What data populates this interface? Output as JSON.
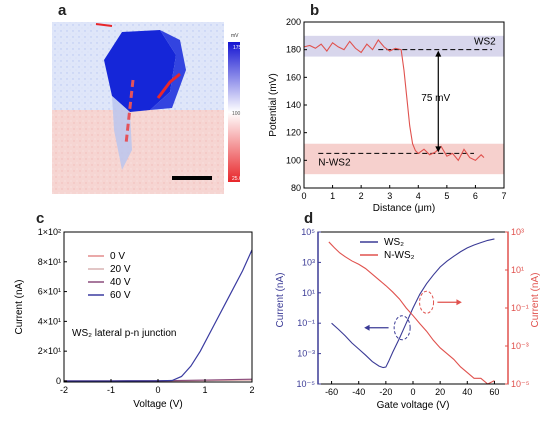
{
  "panels": {
    "a": "a",
    "b": "b",
    "c": "c",
    "d": "d"
  },
  "chart_data": [
    {
      "panel": "a",
      "type": "heatmap",
      "colorbar": {
        "unit": "mV",
        "ticks": [
          "175",
          "100",
          "25.6"
        ],
        "colors": [
          "#1414d2",
          "#ffffff",
          "#e8262a"
        ]
      },
      "features": [
        "flake (WS2, high potential)",
        "lower region (N-WS2, low potential)",
        "dashed line-profile path",
        "scale bar"
      ]
    },
    {
      "panel": "b",
      "type": "line",
      "xlabel": "Distance (μm)",
      "ylabel": "Potential (mV)",
      "xlim": [
        0,
        7
      ],
      "ylim": [
        80,
        200
      ],
      "xticks": [
        0,
        1,
        2,
        3,
        4,
        5,
        6,
        7
      ],
      "yticks": [
        80,
        100,
        120,
        140,
        160,
        180,
        200
      ],
      "band_labels": [
        "WS2",
        "N-WS2"
      ],
      "bands": [
        [
          175,
          190
        ],
        [
          90,
          112
        ]
      ],
      "reference_levels": [
        180,
        105
      ],
      "annotation": "75 mV",
      "series": [
        {
          "color": "#e0524e",
          "x": [
            0.0,
            0.2,
            0.4,
            0.6,
            0.8,
            1.0,
            1.2,
            1.4,
            1.6,
            1.8,
            2.0,
            2.2,
            2.4,
            2.6,
            2.8,
            3.0,
            3.2,
            3.4,
            3.5,
            3.6,
            3.7,
            3.8,
            3.9,
            4.0,
            4.2,
            4.4,
            4.6,
            4.8,
            5.0,
            5.2,
            5.4,
            5.6,
            5.8,
            6.0,
            6.2,
            6.3
          ],
          "y": [
            182,
            183,
            181,
            184,
            179,
            185,
            182,
            180,
            186,
            181,
            178,
            184,
            180,
            187,
            182,
            179,
            181,
            180,
            165,
            145,
            125,
            112,
            107,
            105,
            108,
            104,
            106,
            110,
            103,
            105,
            100,
            108,
            102,
            100,
            104,
            102
          ]
        }
      ]
    },
    {
      "panel": "c",
      "type": "line",
      "xlabel": "Voltage (V)",
      "ylabel": "Current (nA)",
      "xlim": [
        -2,
        2
      ],
      "ylim": [
        -0.7,
        100
      ],
      "xticks": [
        -2,
        -1,
        0,
        1,
        2
      ],
      "yticks": [
        "0",
        "2×10¹",
        "4×10¹",
        "6×10¹",
        "8×10¹",
        "1×10²"
      ],
      "annotation": "WS₂  lateral p-n junction",
      "series": [
        {
          "name": "0 V",
          "color": "#e38c8c",
          "x": [
            -2,
            -1,
            0,
            1,
            2
          ],
          "y": [
            0,
            0,
            0,
            0.3,
            0.6
          ]
        },
        {
          "name": "20 V",
          "color": "#d9b3b3",
          "x": [
            -2,
            -1,
            0,
            1,
            2
          ],
          "y": [
            0,
            0,
            0,
            0.4,
            0.8
          ]
        },
        {
          "name": "40 V",
          "color": "#8b4c7c",
          "x": [
            -2,
            -1,
            0,
            1,
            2
          ],
          "y": [
            0,
            0,
            0.1,
            0.6,
            1.2
          ]
        },
        {
          "name": "60 V",
          "color": "#3a3ba0",
          "x": [
            -2,
            -1.0,
            0.0,
            0.3,
            0.5,
            0.7,
            0.9,
            1.2,
            1.5,
            1.8,
            2.0
          ],
          "y": [
            0,
            0,
            0.1,
            0.3,
            3,
            10,
            20,
            38,
            56,
            74,
            88
          ]
        }
      ]
    },
    {
      "panel": "d",
      "type": "line",
      "xlabel": "Gate voltage (V)",
      "ylabel_left": "Current (nA)",
      "ylabel_right": "Current (nA)",
      "xlim": [
        -70,
        70
      ],
      "xticks": [
        -60,
        -40,
        -20,
        0,
        20,
        40,
        60
      ],
      "left_scale": "log",
      "left_ylim": [
        1e-05,
        100000.0
      ],
      "left_yticks": [
        "10⁻⁵",
        "10⁻³",
        "10⁻¹",
        "10¹",
        "10³",
        "10⁵"
      ],
      "right_scale": "log",
      "right_ylim": [
        1e-05,
        1000.0
      ],
      "right_yticks": [
        "10⁻⁵",
        "10⁻³",
        "10⁻¹",
        "10¹",
        "10³"
      ],
      "left_color": "#3b3b96",
      "right_color": "#e0524e",
      "series": [
        {
          "name": "WS₂",
          "axis": "left",
          "color": "#3b3b96",
          "x": [
            -60,
            -55,
            -50,
            -45,
            -40,
            -35,
            -30,
            -25,
            -22,
            -20,
            -18,
            -15,
            -10,
            -5,
            0,
            5,
            10,
            15,
            20,
            25,
            30,
            35,
            40,
            45,
            50,
            55,
            60
          ],
          "y": [
            0.1,
            0.04,
            0.015,
            0.005,
            0.002,
            0.0008,
            0.0003,
            0.00015,
            0.00012,
            0.00013,
            0.0003,
            0.0012,
            0.01,
            0.1,
            1,
            8,
            40,
            150,
            500,
            1200,
            2500,
            5000,
            9000,
            14000,
            20000,
            28000,
            35000
          ]
        },
        {
          "name": "N-WS₂",
          "axis": "right",
          "color": "#e0524e",
          "x": [
            -62,
            -58,
            -54,
            -50,
            -45,
            -40,
            -35,
            -30,
            -25,
            -20,
            -15,
            -10,
            -5,
            0,
            5,
            10,
            15,
            20,
            25,
            30,
            35,
            40,
            45,
            50,
            55,
            60
          ],
          "y": [
            300,
            150,
            80,
            50,
            30,
            20,
            12,
            6,
            3,
            1.5,
            0.7,
            0.3,
            0.1,
            0.04,
            0.015,
            0.006,
            0.002,
            0.0008,
            0.0004,
            0.0002,
            8e-05,
            4e-05,
            2e-05,
            2e-05,
            1e-05,
            1.5e-05
          ]
        }
      ]
    }
  ]
}
